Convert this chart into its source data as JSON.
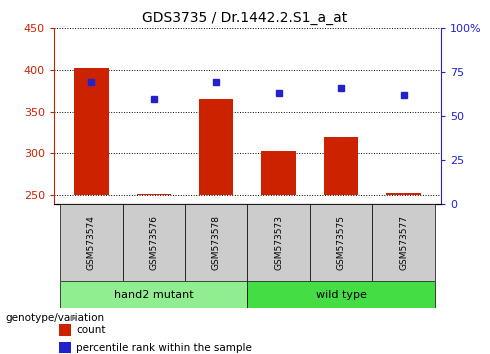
{
  "title": "GDS3735 / Dr.1442.2.S1_a_at",
  "samples": [
    "GSM573574",
    "GSM573576",
    "GSM573578",
    "GSM573573",
    "GSM573575",
    "GSM573577"
  ],
  "counts": [
    403,
    252,
    365,
    303,
    320,
    253
  ],
  "dot_left_coords": [
    386,
    365,
    386,
    372,
    378,
    370
  ],
  "ylim_left": [
    240,
    450
  ],
  "ylim_right": [
    0,
    100
  ],
  "yticks_left": [
    250,
    300,
    350,
    400,
    450
  ],
  "yticks_right": [
    0,
    25,
    50,
    75,
    100
  ],
  "ytick_labels_right": [
    "0",
    "25",
    "50",
    "75",
    "100%"
  ],
  "groups": [
    {
      "label": "hand2 mutant",
      "indices": [
        0,
        1,
        2
      ],
      "color": "#90EE90"
    },
    {
      "label": "wild type",
      "indices": [
        3,
        4,
        5
      ],
      "color": "#44DD44"
    }
  ],
  "bar_color": "#CC2200",
  "dot_color": "#2222CC",
  "bar_width": 0.55,
  "background_color": "#ffffff",
  "legend_count_label": "count",
  "legend_pct_label": "percentile rank within the sample",
  "group_label": "genotype/variation",
  "tick_color_left": "#CC2200",
  "tick_color_right": "#2222CC",
  "count_baseline": 250
}
